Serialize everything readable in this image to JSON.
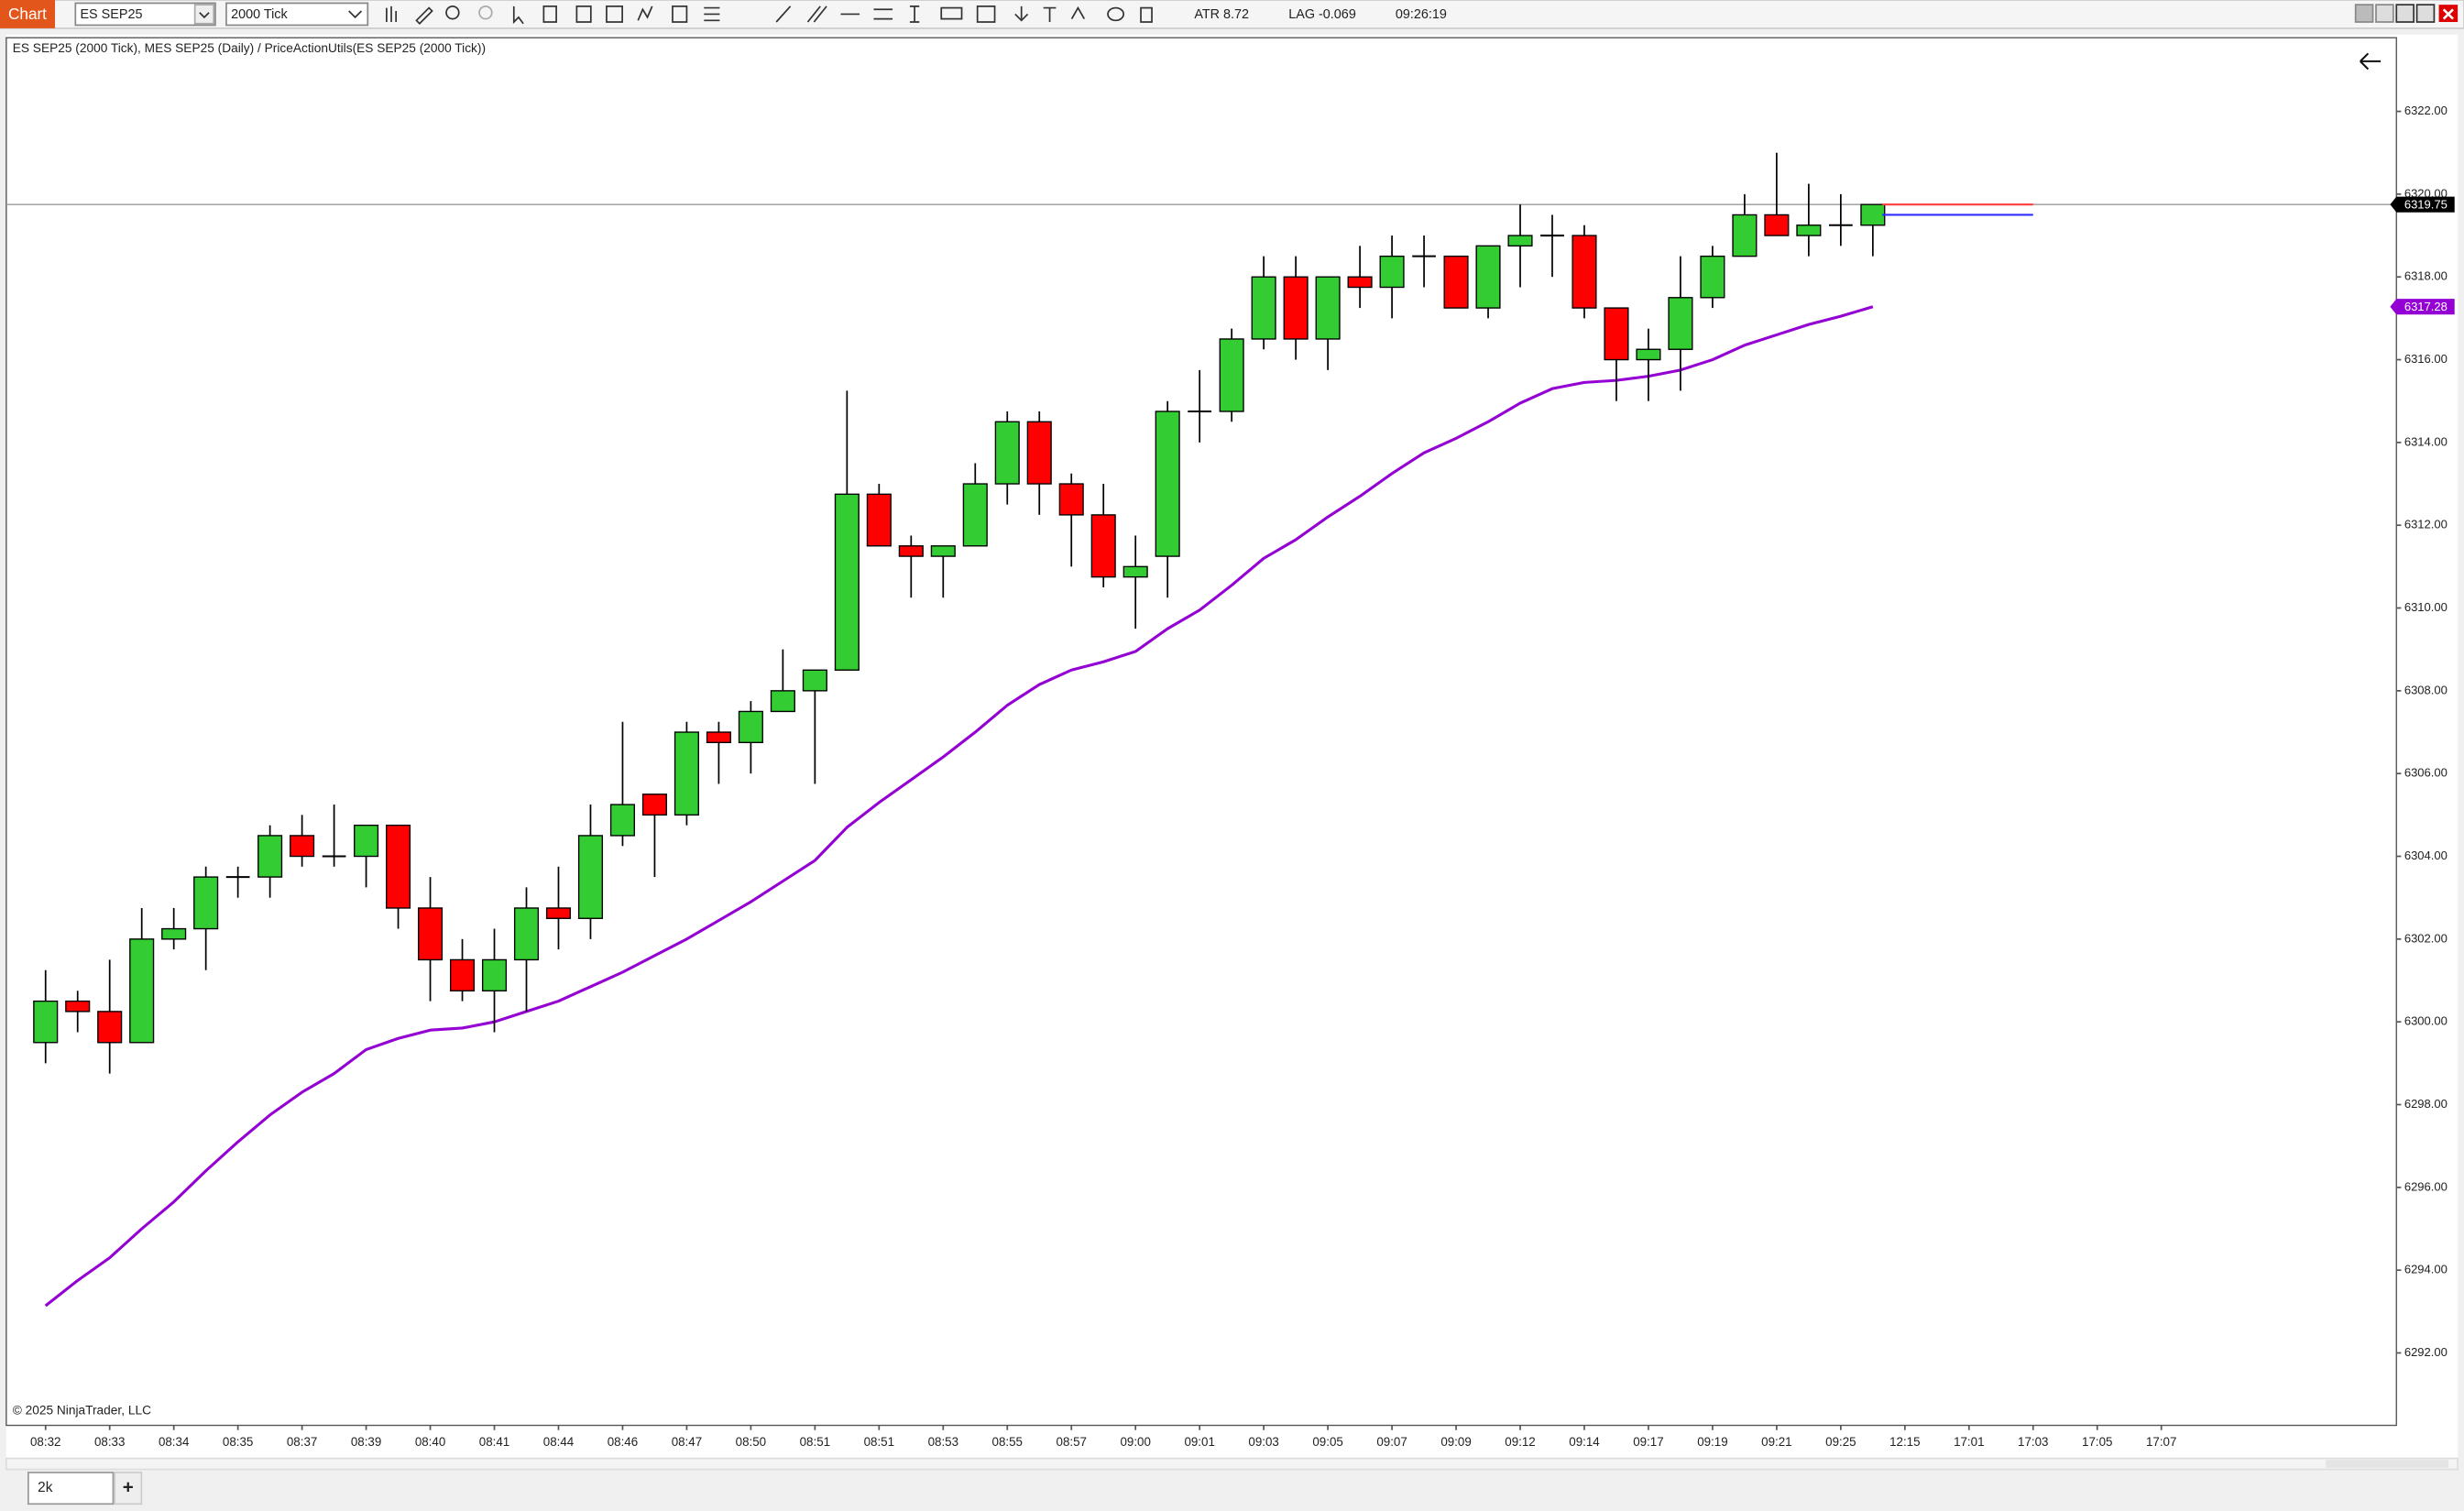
{
  "toolbar": {
    "app_button": "Chart",
    "instrument": "ES SEP25",
    "interval": "2000 Tick",
    "atr": "ATR 8.72",
    "lag": "LAG -0.069",
    "clock": "09:26:19"
  },
  "chart_data": {
    "type": "candlestick",
    "title": "ES SEP25 (2000 Tick), MES SEP25 (Daily) / PriceActionUtils(ES SEP25 (2000 Tick))",
    "copyright": "© 2025 NinjaTrader, LLC",
    "categories": [
      "08:32",
      null,
      "08:33",
      null,
      "08:34",
      null,
      "08:35",
      null,
      "08:37",
      null,
      "08:39",
      null,
      "08:40",
      null,
      "08:41",
      null,
      "08:44",
      null,
      "08:46",
      null,
      "08:47",
      null,
      "08:50",
      null,
      "08:51",
      null,
      "08:51",
      null,
      "08:53",
      null,
      "08:55",
      null,
      "08:57",
      null,
      "09:00",
      null,
      "09:01",
      null,
      "09:03",
      null,
      "09:05",
      null,
      "09:07",
      null,
      "09:09",
      null,
      "09:12",
      null,
      "09:14",
      null,
      "09:17",
      null,
      "09:19",
      null,
      "09:21",
      null,
      "09:25",
      null,
      "12:15",
      null,
      "17:01",
      null,
      "17:03",
      null,
      "17:05",
      null,
      "17:07"
    ],
    "open": [
      6299.5,
      6300.5,
      6300.25,
      6299.5,
      6302.0,
      6302.25,
      6303.5,
      6303.5,
      6304.5,
      6304.0,
      6304.0,
      6304.75,
      6302.75,
      6301.5,
      6300.75,
      6301.5,
      6302.75,
      6302.5,
      6304.5,
      6305.5,
      6305.0,
      6307.0,
      6306.75,
      6307.5,
      6308.0,
      6308.5,
      6312.75,
      6311.5,
      6311.25,
      6311.5,
      6313.0,
      6314.5,
      6313.0,
      6312.25,
      6310.75,
      6311.25,
      6314.75,
      6314.75,
      6316.5,
      6318.0,
      6316.5,
      6318.0,
      6317.75,
      6318.5,
      6318.5,
      6317.25,
      6318.75,
      6319.0,
      6319.0,
      6317.25,
      6316.0,
      6316.25,
      6317.5,
      6318.5,
      6319.5,
      6319.0,
      6319.25,
      6319.25,
      null,
      null,
      null,
      null,
      null,
      null,
      null,
      null,
      null
    ],
    "high": [
      6301.25,
      6300.75,
      6301.5,
      6302.75,
      6302.75,
      6303.75,
      6303.75,
      6304.75,
      6305.0,
      6305.25,
      6304.75,
      6304.75,
      6303.5,
      6302.0,
      6302.25,
      6303.25,
      6303.75,
      6305.25,
      6307.25,
      6305.5,
      6307.25,
      6307.25,
      6307.75,
      6309.0,
      6308.5,
      6315.25,
      6313.0,
      6311.75,
      6311.5,
      6313.5,
      6314.75,
      6314.75,
      6313.25,
      6313.0,
      6311.75,
      6315.0,
      6315.75,
      6316.75,
      6318.5,
      6318.5,
      6318.0,
      6318.75,
      6319.0,
      6319.0,
      6318.5,
      6318.75,
      6319.75,
      6319.5,
      6319.25,
      6317.25,
      6316.75,
      6318.5,
      6318.75,
      6320.0,
      6321.0,
      6320.25,
      6320.0,
      6319.75,
      null,
      null,
      null,
      null,
      null,
      null,
      null,
      null,
      null
    ],
    "low": [
      6299.0,
      6299.75,
      6298.75,
      6299.5,
      6301.75,
      6301.25,
      6303.0,
      6303.0,
      6303.75,
      6303.75,
      6303.25,
      6302.25,
      6300.5,
      6300.5,
      6299.75,
      6300.25,
      6301.75,
      6302.0,
      6304.25,
      6303.5,
      6304.75,
      6305.75,
      6306.0,
      6307.5,
      6305.75,
      6308.5,
      6311.5,
      6310.25,
      6310.25,
      6311.5,
      6312.5,
      6312.25,
      6311.0,
      6310.5,
      6309.5,
      6310.25,
      6314.0,
      6314.5,
      6316.25,
      6316.0,
      6315.75,
      6317.25,
      6317.0,
      6317.75,
      6317.25,
      6317.0,
      6317.75,
      6318.0,
      6317.0,
      6315.0,
      6315.0,
      6315.25,
      6317.25,
      6318.5,
      6319.0,
      6318.5,
      6318.75,
      6318.5,
      null,
      null,
      null,
      null,
      null,
      null,
      null,
      null,
      null
    ],
    "close": [
      6300.5,
      6300.25,
      6299.5,
      6302.0,
      6302.25,
      6303.5,
      6303.5,
      6304.5,
      6304.0,
      6304.0,
      6304.75,
      6302.75,
      6301.5,
      6300.75,
      6301.5,
      6302.75,
      6302.5,
      6304.5,
      6305.25,
      6305.0,
      6307.0,
      6306.75,
      6307.5,
      6308.0,
      6308.5,
      6312.75,
      6311.5,
      6311.25,
      6311.5,
      6313.0,
      6314.5,
      6313.0,
      6312.25,
      6310.75,
      6311.0,
      6314.75,
      6314.75,
      6316.5,
      6318.0,
      6316.5,
      6318.0,
      6317.75,
      6318.5,
      6318.5,
      6317.25,
      6318.75,
      6319.0,
      6319.0,
      6317.25,
      6316.0,
      6316.25,
      6317.5,
      6318.5,
      6319.5,
      6319.0,
      6319.25,
      6319.25,
      6319.75,
      null,
      null,
      null,
      null,
      null,
      null,
      null,
      null,
      null
    ],
    "up_color": "#33cc33",
    "down_color": "#ff0000",
    "indicator": {
      "color": "#9400d3",
      "values": [
        6293.14,
        6293.75,
        6294.3,
        6295.0,
        6295.65,
        6296.4,
        6297.1,
        6297.75,
        6298.3,
        6298.75,
        6299.33,
        6299.6,
        6299.8,
        6299.85,
        6300.0,
        6300.25,
        6300.5,
        6300.85,
        6301.2,
        6301.6,
        6302.0,
        6302.45,
        6302.9,
        6303.4,
        6303.9,
        6304.7,
        6305.3,
        6305.85,
        6306.4,
        6307.0,
        6307.65,
        6308.15,
        6308.5,
        6308.7,
        6308.95,
        6309.5,
        6309.95,
        6310.55,
        6311.2,
        6311.65,
        6312.2,
        6312.7,
        6313.25,
        6313.75,
        6314.1,
        6314.5,
        6314.95,
        6315.3,
        6315.45,
        6315.5,
        6315.6,
        6315.75,
        6316.0,
        6316.35,
        6316.6,
        6316.85,
        6317.05,
        6317.28,
        null,
        null,
        null,
        null,
        null,
        null,
        null,
        null,
        null
      ]
    },
    "indicator_last": 6317.28,
    "last_price": 6319.75,
    "ask": 6319.75,
    "bid": 6319.5,
    "ylim": [
      6290.25,
      6323.78
    ],
    "yticks": [
      {
        "value": 6292,
        "label": "6292.00"
      },
      {
        "value": 6294,
        "label": "6294.00"
      },
      {
        "value": 6296,
        "label": "6296.00"
      },
      {
        "value": 6298,
        "label": "6298.00"
      },
      {
        "value": 6300,
        "label": "6300.00"
      },
      {
        "value": 6302,
        "label": "6302.00"
      },
      {
        "value": 6304,
        "label": "6304.00"
      },
      {
        "value": 6306,
        "label": "6306.00"
      },
      {
        "value": 6308,
        "label": "6308.00"
      },
      {
        "value": 6310,
        "label": "6310.00"
      },
      {
        "value": 6312,
        "label": "6312.00"
      },
      {
        "value": 6314,
        "label": "6314.00"
      },
      {
        "value": 6316,
        "label": "6316.00"
      },
      {
        "value": 6318,
        "label": "6318.00"
      },
      {
        "value": 6320,
        "label": "6320.00"
      },
      {
        "value": 6322,
        "label": "6322.00"
      }
    ]
  },
  "tabs": {
    "active": "2k",
    "add": "+"
  }
}
